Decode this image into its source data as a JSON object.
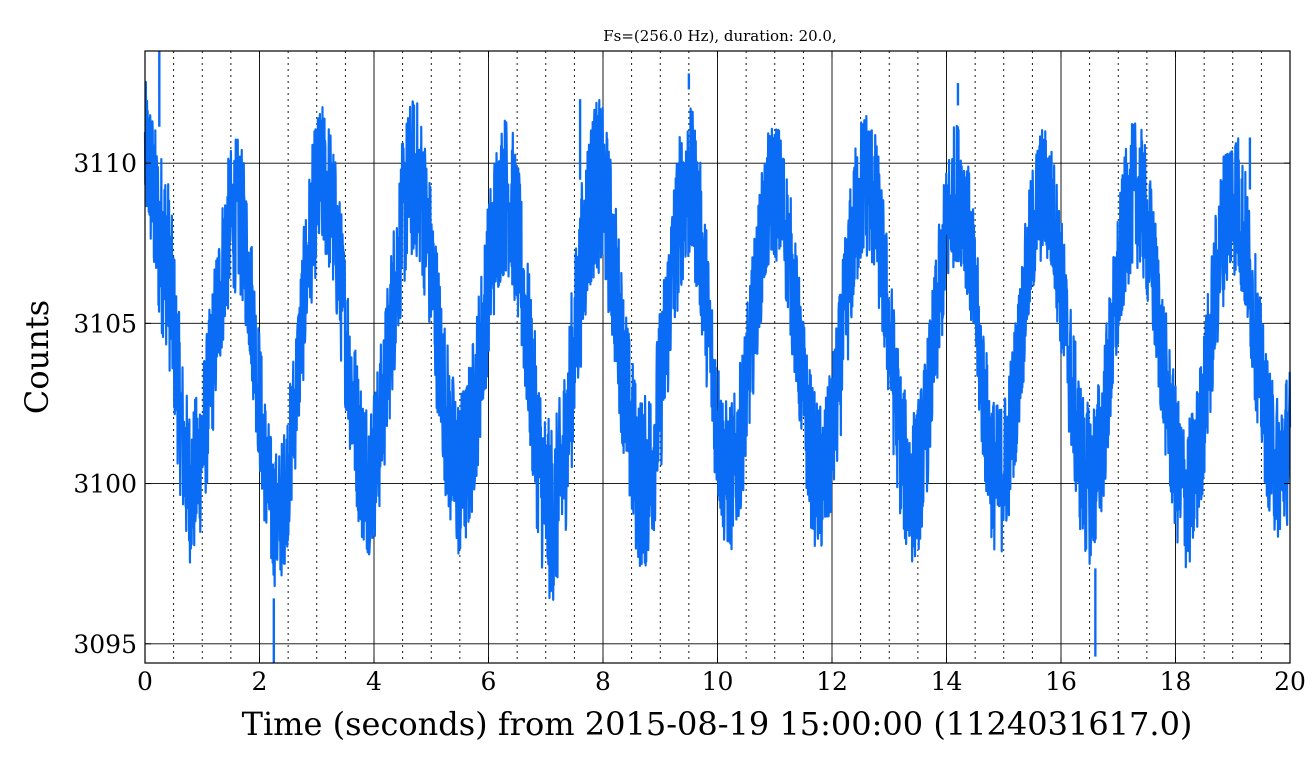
{
  "chart_data": {
    "type": "line",
    "title": "Fs=(256.0 Hz), duration: 20.0,",
    "xlabel": "Time (seconds) from 2015-08-19 15:00:00 (1124031617.0)",
    "ylabel": "Counts",
    "xlim": [
      0,
      20
    ],
    "ylim": [
      3094.4,
      3113.5
    ],
    "x_ticks": [
      0,
      2,
      4,
      6,
      8,
      10,
      12,
      14,
      16,
      18,
      20
    ],
    "x_tick_labels": [
      "0",
      "2",
      "4",
      "6",
      "8",
      "10",
      "12",
      "14",
      "16",
      "18",
      "20"
    ],
    "x_minor_ticks": [
      0.5,
      1,
      1.5,
      2.5,
      3,
      3.5,
      4.5,
      5,
      5.5,
      6.5,
      7,
      7.5,
      8.5,
      9,
      9.5,
      10.5,
      11,
      11.5,
      12.5,
      13,
      13.5,
      14.5,
      15,
      15.5,
      16.5,
      17,
      17.5,
      18.5,
      19,
      19.5
    ],
    "y_ticks": [
      3095,
      3100,
      3105,
      3110
    ],
    "y_tick_labels": [
      "3095",
      "3100",
      "3105",
      "3110"
    ],
    "grid": true,
    "line_color": "#0a6cf5",
    "series": [
      {
        "envelope": [
          {
            "x": 0.0,
            "lo": 3107.5,
            "hi": 3113.0
          },
          {
            "x": 0.3,
            "lo": 3104.0,
            "hi": 3111.0
          },
          {
            "x": 0.8,
            "lo": 3097.0,
            "hi": 3103.0
          },
          {
            "x": 1.6,
            "lo": 3105.5,
            "hi": 3111.3
          },
          {
            "x": 2.3,
            "lo": 3096.3,
            "hi": 3101.5
          },
          {
            "x": 3.1,
            "lo": 3106.5,
            "hi": 3112.3
          },
          {
            "x": 3.9,
            "lo": 3097.3,
            "hi": 3103.3
          },
          {
            "x": 4.7,
            "lo": 3106.5,
            "hi": 3112.6
          },
          {
            "x": 5.5,
            "lo": 3097.0,
            "hi": 3103.5
          },
          {
            "x": 6.3,
            "lo": 3106.0,
            "hi": 3112.1
          },
          {
            "x": 7.1,
            "lo": 3095.7,
            "hi": 3102.5
          },
          {
            "x": 7.9,
            "lo": 3106.0,
            "hi": 3112.6
          },
          {
            "x": 8.7,
            "lo": 3096.7,
            "hi": 3103.3
          },
          {
            "x": 9.5,
            "lo": 3106.2,
            "hi": 3112.3
          },
          {
            "x": 10.2,
            "lo": 3097.3,
            "hi": 3103.0
          },
          {
            "x": 11.0,
            "lo": 3106.5,
            "hi": 3111.8
          },
          {
            "x": 11.8,
            "lo": 3097.2,
            "hi": 3103.0
          },
          {
            "x": 12.6,
            "lo": 3106.5,
            "hi": 3112.3
          },
          {
            "x": 13.4,
            "lo": 3097.0,
            "hi": 3102.8
          },
          {
            "x": 14.2,
            "lo": 3106.5,
            "hi": 3111.8
          },
          {
            "x": 14.9,
            "lo": 3097.2,
            "hi": 3103.0
          },
          {
            "x": 15.7,
            "lo": 3106.5,
            "hi": 3111.6
          },
          {
            "x": 16.5,
            "lo": 3097.0,
            "hi": 3103.0
          },
          {
            "x": 17.3,
            "lo": 3106.3,
            "hi": 3111.8
          },
          {
            "x": 18.2,
            "lo": 3096.8,
            "hi": 3102.5
          },
          {
            "x": 19.0,
            "lo": 3106.0,
            "hi": 3111.8
          },
          {
            "x": 19.8,
            "lo": 3097.8,
            "hi": 3103.3
          },
          {
            "x": 20.0,
            "lo": 3098.3,
            "hi": 3104.2
          }
        ],
        "spikes": [
          {
            "x": 0.25,
            "y": 3113.5
          },
          {
            "x": 2.25,
            "y": 3094.4
          },
          {
            "x": 16.6,
            "y": 3094.6
          },
          {
            "x": 9.5,
            "y": 3112.8
          },
          {
            "x": 7.6,
            "y": 3112.0
          },
          {
            "x": 14.2,
            "y": 3112.5
          },
          {
            "x": 19.3,
            "y": 3110.8
          }
        ]
      }
    ]
  }
}
